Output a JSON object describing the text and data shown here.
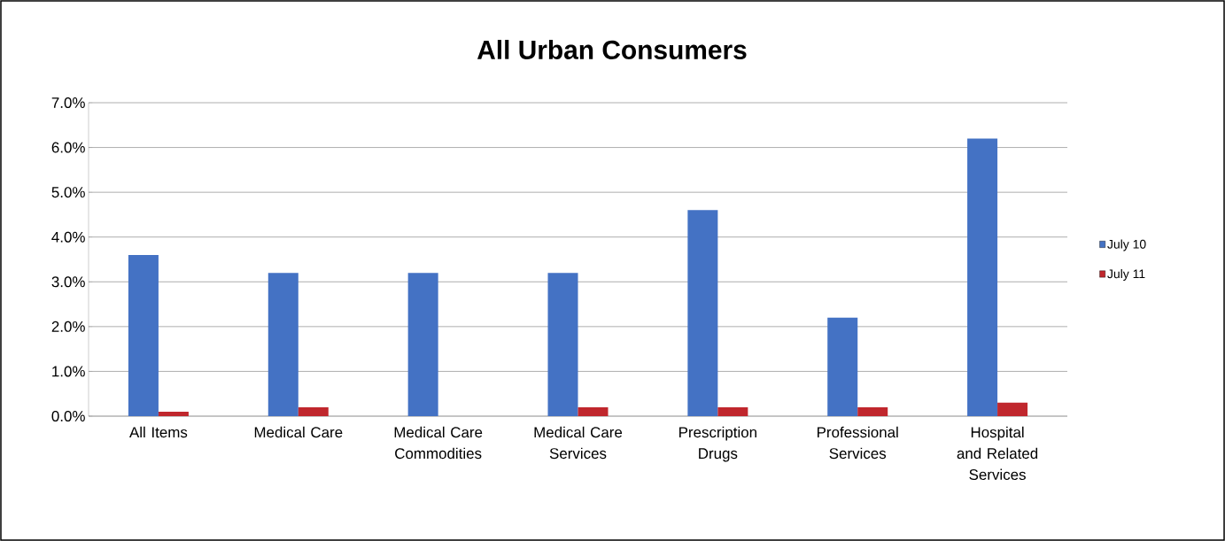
{
  "chart_data": {
    "type": "bar",
    "title": "All Urban Consumers",
    "categories": [
      "All Items",
      "Medical Care",
      "Medical Care Commodities",
      "Medical Care Services",
      "Prescription Drugs",
      "Professional Services",
      "Hospital and Related Services"
    ],
    "series": [
      {
        "name": "July 10",
        "color": "#4472c4",
        "values": [
          3.6,
          3.2,
          3.2,
          3.2,
          4.6,
          2.2,
          6.2
        ]
      },
      {
        "name": "July 11",
        "color": "#c0272d",
        "values": [
          0.1,
          0.2,
          0,
          0.2,
          0.2,
          0.2,
          0.3
        ]
      }
    ],
    "ylim": [
      0,
      7
    ],
    "yticks": [
      {
        "value": 0,
        "label": "0.0%"
      },
      {
        "value": 1,
        "label": "1.0%"
      },
      {
        "value": 2,
        "label": "2.0%"
      },
      {
        "value": 3,
        "label": "3.0%"
      },
      {
        "value": 4,
        "label": "4.0%"
      },
      {
        "value": 5,
        "label": "5.0%"
      },
      {
        "value": 6,
        "label": "6.0%"
      },
      {
        "value": 7,
        "label": "7.0%"
      }
    ],
    "grid": "y",
    "legend": "right"
  }
}
